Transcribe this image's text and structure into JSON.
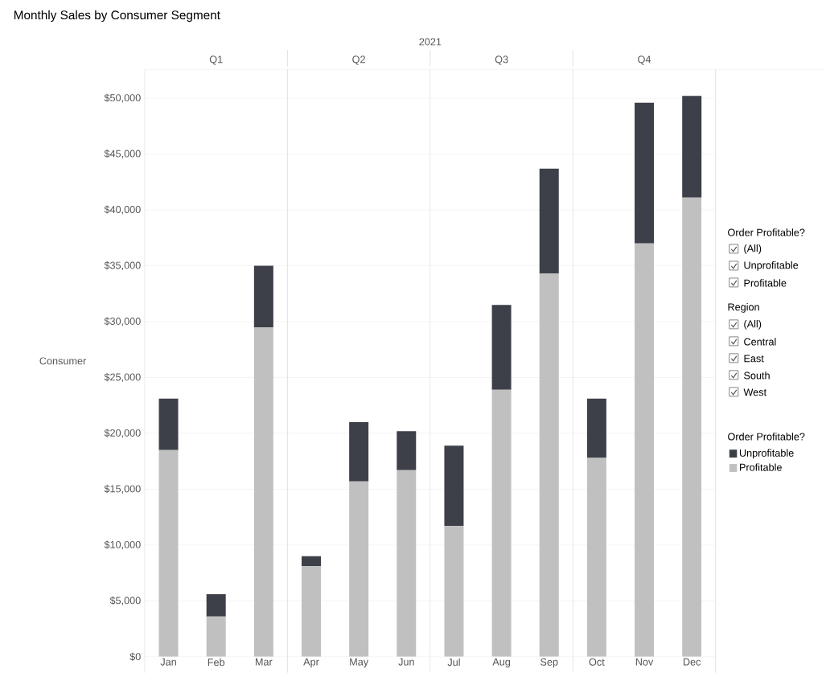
{
  "chart_data": {
    "type": "bar",
    "title": "Monthly Sales by Consumer Segment",
    "ylabel": "Consumer",
    "categories": [
      "Jan",
      "Feb",
      "Mar",
      "Apr",
      "May",
      "Jun",
      "Jul",
      "Aug",
      "Sep",
      "Oct",
      "Nov",
      "Dec"
    ],
    "stacked": true,
    "series": [
      {
        "name": "Profitable",
        "color": "#c0c0c0",
        "values": [
          18500,
          3600,
          29500,
          8100,
          15700,
          16700,
          11700,
          23900,
          34300,
          17800,
          37000,
          41100
        ]
      },
      {
        "name": "Unprofitable",
        "color": "#3d4048",
        "values": [
          4600,
          2000,
          5500,
          900,
          5300,
          3500,
          7200,
          7600,
          9400,
          5300,
          12600,
          9100
        ]
      }
    ],
    "ylim": [
      0,
      52600
    ],
    "yticks": [
      {
        "value": 0,
        "label": "$0"
      },
      {
        "value": 5000,
        "label": "$5,000"
      },
      {
        "value": 10000,
        "label": "$10,000"
      },
      {
        "value": 15000,
        "label": "$15,000"
      },
      {
        "value": 20000,
        "label": "$20,000"
      },
      {
        "value": 25000,
        "label": "$25,000"
      },
      {
        "value": 30000,
        "label": "$30,000"
      },
      {
        "value": 35000,
        "label": "$35,000"
      },
      {
        "value": 40000,
        "label": "$40,000"
      },
      {
        "value": 45000,
        "label": "$45,000"
      },
      {
        "value": 50000,
        "label": "$50,000"
      }
    ],
    "grid": "y",
    "legend": "right",
    "legend_title": "Order Profitable?",
    "annotations": [
      "2021",
      "Q1",
      "Q2",
      "Q3",
      "Q4",
      "Order Profitable?",
      "(All)",
      "Unprofitable",
      "Profitable",
      "Region",
      "(All)",
      "Central",
      "East",
      "South",
      "West"
    ]
  }
}
